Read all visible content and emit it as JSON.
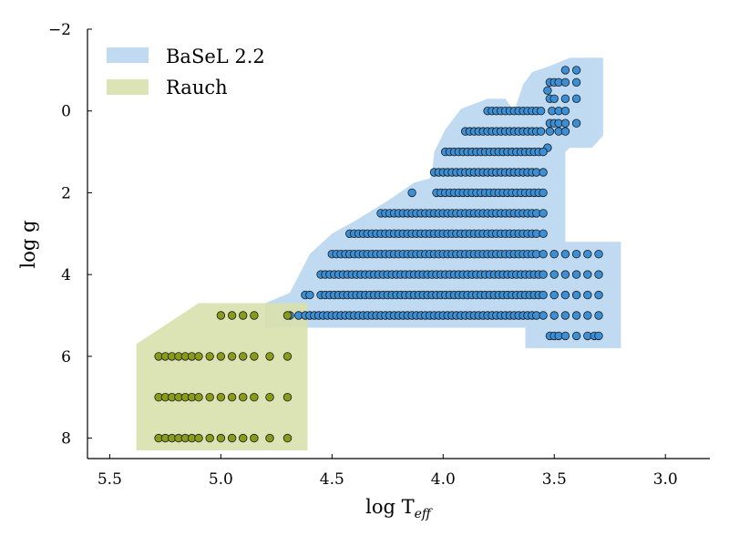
{
  "chart_data": {
    "type": "scatter",
    "title": "",
    "xlabel": "log T",
    "xlabel_sub": "eff",
    "ylabel": "log g",
    "xlim": [
      5.6,
      2.8
    ],
    "ylim": [
      -2,
      8.5
    ],
    "x_inverted": true,
    "y_inverted": true,
    "x_ticks": [
      5.5,
      5.0,
      4.5,
      4.0,
      3.5,
      3.0
    ],
    "x_tick_labels": [
      "5.5",
      "5.0",
      "4.5",
      "4.0",
      "3.5",
      "3.0"
    ],
    "y_ticks": [
      -2,
      0,
      2,
      4,
      6,
      8
    ],
    "y_tick_labels": [
      "−2",
      "0",
      "2",
      "4",
      "6",
      "8"
    ],
    "grid": false,
    "legend_position": "top-left",
    "series": [
      {
        "name": "BaSeL 2.2",
        "color": "#3a8fd6",
        "fill_color": "#b9d7ef",
        "region": [
          [
            4.8,
            4.7
          ],
          [
            4.69,
            4.45
          ],
          [
            4.6,
            3.5
          ],
          [
            4.5,
            3.0
          ],
          [
            4.4,
            2.7
          ],
          [
            4.25,
            2.2
          ],
          [
            4.13,
            1.75
          ],
          [
            4.06,
            1.65
          ],
          [
            4.05,
            1.5
          ],
          [
            4.04,
            1.0
          ],
          [
            3.99,
            0.45
          ],
          [
            3.92,
            -0.05
          ],
          [
            3.8,
            -0.3
          ],
          [
            3.72,
            -0.3
          ],
          [
            3.68,
            0.0
          ],
          [
            3.64,
            -0.65
          ],
          [
            3.6,
            -0.95
          ],
          [
            3.52,
            -1.1
          ],
          [
            3.43,
            -1.3
          ],
          [
            3.28,
            -1.3
          ],
          [
            3.28,
            0.6
          ],
          [
            3.33,
            0.9
          ],
          [
            3.43,
            0.9
          ],
          [
            3.45,
            1.0
          ],
          [
            3.45,
            3.2
          ],
          [
            3.2,
            3.2
          ],
          [
            3.2,
            5.8
          ],
          [
            3.63,
            5.8
          ],
          [
            3.63,
            5.3
          ],
          [
            4.8,
            5.3
          ]
        ],
        "rows": [
          {
            "y": -1.0,
            "x": [
              3.45,
              3.4
            ]
          },
          {
            "y": -0.7,
            "x": [
              3.52,
              3.5,
              3.48,
              3.45,
              3.4
            ]
          },
          {
            "y": -0.5,
            "x": [
              3.53
            ]
          },
          {
            "y": -0.3,
            "x": [
              3.52,
              3.5,
              3.45,
              3.4
            ]
          },
          {
            "y": 0.0,
            "x": [
              3.8,
              3.78,
              3.76,
              3.74,
              3.72,
              3.7,
              3.68,
              3.66,
              3.64,
              3.62,
              3.6,
              3.58,
              3.56,
              3.51,
              3.48,
              3.45
            ]
          },
          {
            "y": 0.3,
            "x": [
              3.52,
              3.5,
              3.48,
              3.45,
              3.4
            ]
          },
          {
            "y": 0.5,
            "x": [
              3.9,
              3.88,
              3.86,
              3.84,
              3.82,
              3.8,
              3.78,
              3.76,
              3.74,
              3.72,
              3.7,
              3.68,
              3.66,
              3.64,
              3.62,
              3.6,
              3.58,
              3.56,
              3.52,
              3.48,
              3.45
            ]
          },
          {
            "y": 0.9,
            "x": [
              3.53
            ]
          },
          {
            "y": 1.0,
            "x": [
              3.99,
              3.97,
              3.95,
              3.93,
              3.91,
              3.89,
              3.87,
              3.85,
              3.83,
              3.81,
              3.79,
              3.77,
              3.75,
              3.73,
              3.71,
              3.69,
              3.67,
              3.65,
              3.63,
              3.61,
              3.59,
              3.57,
              3.55
            ]
          },
          {
            "y": 1.5,
            "x": [
              4.04,
              4.02,
              4.0,
              3.98,
              3.96,
              3.94,
              3.92,
              3.9,
              3.88,
              3.86,
              3.84,
              3.82,
              3.8,
              3.78,
              3.76,
              3.74,
              3.72,
              3.7,
              3.68,
              3.66,
              3.64,
              3.62,
              3.6,
              3.58,
              3.55
            ]
          },
          {
            "y": 2.0,
            "x": [
              4.14,
              4.03,
              4.01,
              3.99,
              3.97,
              3.95,
              3.93,
              3.91,
              3.89,
              3.87,
              3.85,
              3.83,
              3.81,
              3.79,
              3.77,
              3.75,
              3.73,
              3.71,
              3.69,
              3.67,
              3.65,
              3.63,
              3.61,
              3.59,
              3.57,
              3.55
            ]
          },
          {
            "y": 2.5,
            "x": [
              4.28,
              4.26,
              4.24,
              4.22,
              4.2,
              4.18,
              4.16,
              4.14,
              4.12,
              4.1,
              4.08,
              4.06,
              4.04,
              4.02,
              4.0,
              3.98,
              3.96,
              3.94,
              3.92,
              3.9,
              3.88,
              3.86,
              3.84,
              3.82,
              3.8,
              3.78,
              3.76,
              3.74,
              3.72,
              3.7,
              3.68,
              3.66,
              3.64,
              3.62,
              3.6,
              3.58,
              3.55
            ]
          },
          {
            "y": 3.0,
            "x": [
              4.42,
              4.4,
              4.38,
              4.36,
              4.34,
              4.32,
              4.3,
              4.28,
              4.26,
              4.24,
              4.22,
              4.2,
              4.18,
              4.16,
              4.14,
              4.12,
              4.1,
              4.08,
              4.06,
              4.04,
              4.02,
              4.0,
              3.98,
              3.96,
              3.94,
              3.92,
              3.9,
              3.88,
              3.86,
              3.84,
              3.82,
              3.8,
              3.78,
              3.76,
              3.74,
              3.72,
              3.7,
              3.68,
              3.66,
              3.64,
              3.62,
              3.6,
              3.58,
              3.55
            ]
          },
          {
            "y": 3.5,
            "x": [
              4.5,
              4.48,
              4.46,
              4.44,
              4.42,
              4.4,
              4.38,
              4.36,
              4.34,
              4.32,
              4.3,
              4.28,
              4.26,
              4.24,
              4.22,
              4.2,
              4.18,
              4.16,
              4.14,
              4.12,
              4.1,
              4.08,
              4.06,
              4.04,
              4.02,
              4.0,
              3.98,
              3.96,
              3.94,
              3.92,
              3.9,
              3.88,
              3.86,
              3.84,
              3.82,
              3.8,
              3.78,
              3.76,
              3.74,
              3.72,
              3.7,
              3.68,
              3.66,
              3.64,
              3.62,
              3.6,
              3.58,
              3.55,
              3.5,
              3.45,
              3.4,
              3.35,
              3.3
            ]
          },
          {
            "y": 4.0,
            "x": [
              4.55,
              4.53,
              4.51,
              4.49,
              4.47,
              4.45,
              4.43,
              4.41,
              4.39,
              4.37,
              4.35,
              4.33,
              4.31,
              4.29,
              4.27,
              4.25,
              4.23,
              4.21,
              4.19,
              4.17,
              4.15,
              4.13,
              4.11,
              4.09,
              4.07,
              4.05,
              4.03,
              4.01,
              3.99,
              3.97,
              3.95,
              3.93,
              3.91,
              3.89,
              3.87,
              3.85,
              3.83,
              3.81,
              3.79,
              3.77,
              3.75,
              3.73,
              3.71,
              3.69,
              3.67,
              3.65,
              3.63,
              3.61,
              3.59,
              3.57,
              3.55,
              3.5,
              3.45,
              3.4,
              3.35,
              3.3
            ]
          },
          {
            "y": 4.5,
            "x": [
              4.62,
              4.6,
              4.55,
              4.53,
              4.51,
              4.49,
              4.47,
              4.45,
              4.43,
              4.41,
              4.39,
              4.37,
              4.35,
              4.33,
              4.31,
              4.29,
              4.27,
              4.25,
              4.23,
              4.21,
              4.19,
              4.17,
              4.15,
              4.13,
              4.11,
              4.09,
              4.07,
              4.05,
              4.03,
              4.01,
              3.99,
              3.97,
              3.95,
              3.93,
              3.91,
              3.89,
              3.87,
              3.85,
              3.83,
              3.81,
              3.79,
              3.77,
              3.75,
              3.73,
              3.71,
              3.69,
              3.67,
              3.65,
              3.63,
              3.61,
              3.59,
              3.57,
              3.55,
              3.5,
              3.45,
              3.4,
              3.35,
              3.3
            ]
          },
          {
            "y": 5.0,
            "x": [
              4.69,
              4.65,
              4.62,
              4.6,
              4.58,
              4.56,
              4.54,
              4.52,
              4.5,
              4.48,
              4.46,
              4.44,
              4.42,
              4.4,
              4.38,
              4.36,
              4.34,
              4.32,
              4.3,
              4.28,
              4.26,
              4.24,
              4.22,
              4.2,
              4.18,
              4.16,
              4.14,
              4.12,
              4.1,
              4.08,
              4.06,
              4.04,
              4.02,
              4.0,
              3.98,
              3.96,
              3.94,
              3.92,
              3.9,
              3.88,
              3.86,
              3.84,
              3.82,
              3.8,
              3.78,
              3.76,
              3.74,
              3.72,
              3.7,
              3.68,
              3.66,
              3.64,
              3.62,
              3.6,
              3.58,
              3.55,
              3.5,
              3.45,
              3.4,
              3.35,
              3.3
            ]
          },
          {
            "y": 5.5,
            "x": [
              3.52,
              3.5,
              3.48,
              3.45,
              3.4,
              3.35,
              3.32,
              3.3
            ]
          }
        ]
      },
      {
        "name": "Rauch",
        "color": "#8a9a19",
        "fill_color": "#d8e0ac",
        "region": [
          [
            5.38,
            5.7
          ],
          [
            5.1,
            4.7
          ],
          [
            4.61,
            4.7
          ],
          [
            4.61,
            8.3
          ],
          [
            5.38,
            8.3
          ]
        ],
        "rows": [
          {
            "y": 5.0,
            "x": [
              5.0,
              4.95,
              4.9,
              4.85,
              4.7
            ]
          },
          {
            "y": 6.0,
            "x": [
              5.28,
              5.25,
              5.22,
              5.19,
              5.16,
              5.13,
              5.1,
              5.05,
              5.0,
              4.95,
              4.9,
              4.85,
              4.78,
              4.7
            ]
          },
          {
            "y": 7.0,
            "x": [
              5.28,
              5.25,
              5.22,
              5.19,
              5.16,
              5.13,
              5.1,
              5.05,
              5.0,
              4.95,
              4.9,
              4.85,
              4.78,
              4.7
            ]
          },
          {
            "y": 8.0,
            "x": [
              5.28,
              5.25,
              5.22,
              5.19,
              5.16,
              5.13,
              5.1,
              5.05,
              5.0,
              4.95,
              4.9,
              4.85,
              4.78,
              4.7
            ]
          }
        ]
      }
    ]
  }
}
